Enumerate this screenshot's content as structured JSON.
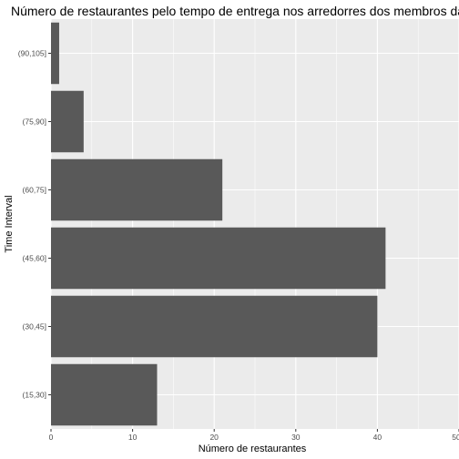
{
  "chart_data": {
    "type": "bar",
    "orientation": "horizontal",
    "title": "Número de restaurantes pelo tempo de entrega nos arredorres dos membros da IM",
    "xlabel": "Número de restaurantes",
    "ylabel": "Time Interval",
    "categories": [
      "(15,30]",
      "(30,45]",
      "(45,60]",
      "(60,75]",
      "(75,90]",
      "(90,105]"
    ],
    "values": [
      13,
      40,
      41,
      21,
      4,
      1
    ],
    "xlim": [
      0,
      50
    ],
    "xticks": [
      "0",
      "10",
      "20",
      "30",
      "40",
      "50"
    ],
    "grid": true,
    "bar_color": "#595959",
    "panel_color": "#ebebeb",
    "grid_color": "#ffffff"
  }
}
